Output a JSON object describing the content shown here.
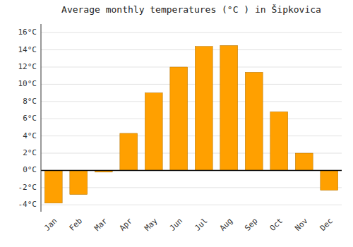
{
  "chart_data": {
    "type": "bar",
    "title": "Average monthly temperatures (°C ) in Šipkovica",
    "categories": [
      "Jan",
      "Feb",
      "Mar",
      "Apr",
      "May",
      "Jun",
      "Jul",
      "Aug",
      "Sep",
      "Oct",
      "Nov",
      "Dec"
    ],
    "values": [
      -3.8,
      -2.8,
      -0.2,
      4.3,
      9.0,
      12.0,
      14.4,
      14.5,
      11.4,
      6.8,
      2.0,
      -2.3
    ],
    "color": "#FFA000",
    "ylim": [
      -4.8,
      17.0
    ],
    "yticks": [
      {
        "value": -4,
        "label": "-4°C"
      },
      {
        "value": -2,
        "label": "-2°C"
      },
      {
        "value": 0,
        "label": "0°C"
      },
      {
        "value": 2,
        "label": "2°C"
      },
      {
        "value": 4,
        "label": "4°C"
      },
      {
        "value": 6,
        "label": "6°C"
      },
      {
        "value": 8,
        "label": "8°C"
      },
      {
        "value": 10,
        "label": "10°C"
      },
      {
        "value": 12,
        "label": "12°C"
      },
      {
        "value": 14,
        "label": "14°C"
      },
      {
        "value": 16,
        "label": "16°C"
      }
    ],
    "grid": true
  }
}
